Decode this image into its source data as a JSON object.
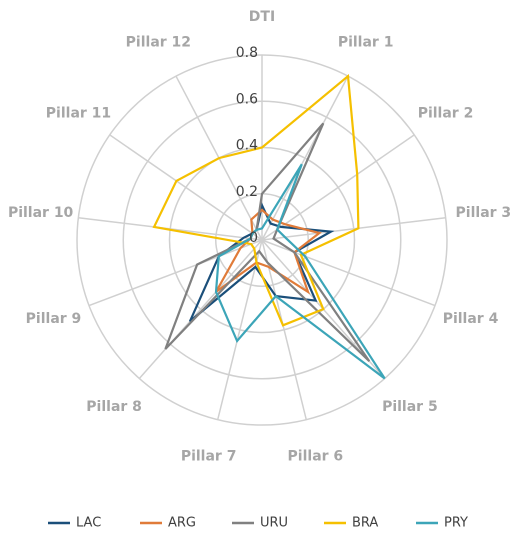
{
  "chart_data": {
    "type": "radar",
    "categories": [
      "DTI",
      "Pillar 1",
      "Pillar 2",
      "Pillar 3",
      "Pillar 4",
      "Pillar 5",
      "Pillar 6",
      "Pillar 7",
      "Pillar 8",
      "Pillar 9",
      "Pillar 10",
      "Pillar 11",
      "Pillar 12"
    ],
    "series": [
      {
        "name": "LAC",
        "color": "#1b4f7a",
        "values": [
          0.15,
          0.08,
          0.1,
          0.3,
          0.15,
          0.35,
          0.25,
          0.12,
          0.47,
          0.2,
          0.08,
          0.05,
          0.05
        ]
      },
      {
        "name": "ARG",
        "color": "#e07b39",
        "values": [
          0.13,
          0.1,
          0.12,
          0.25,
          0.15,
          0.3,
          0.12,
          0.1,
          0.3,
          0.1,
          0.05,
          0.05,
          0.1
        ]
      },
      {
        "name": "URU",
        "color": "#808080",
        "values": [
          0.2,
          0.57,
          0.08,
          0.05,
          0.15,
          0.7,
          0.1,
          0.05,
          0.63,
          0.3,
          0.05,
          0.05,
          0.05
        ]
      },
      {
        "name": "BRA",
        "color": "#f5c000",
        "values": [
          0.4,
          0.8,
          0.5,
          0.42,
          0.18,
          0.4,
          0.38,
          0.1,
          0.05,
          0.05,
          0.47,
          0.45,
          0.4
        ]
      },
      {
        "name": "PRY",
        "color": "#3ca5b8",
        "values": [
          0.05,
          0.37,
          0.08,
          0.1,
          0.2,
          0.8,
          0.25,
          0.45,
          0.3,
          0.2,
          0.05,
          0.05,
          0.05
        ]
      }
    ],
    "ylim": [
      0,
      0.8
    ],
    "yticks": [
      0,
      0.2,
      0.4,
      0.6,
      0.8
    ],
    "grid": true,
    "legend": "bottom"
  }
}
